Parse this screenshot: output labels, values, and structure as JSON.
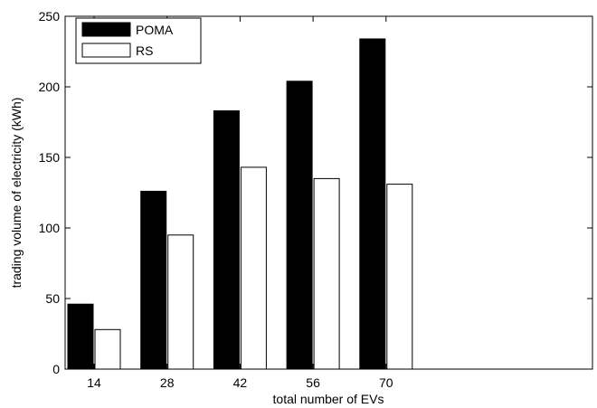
{
  "chart_data": {
    "type": "bar",
    "title": "",
    "xlabel": "total number of EVs",
    "ylabel": "trading volume of electricity (kWh)",
    "categories": [
      "14",
      "28",
      "42",
      "56",
      "70"
    ],
    "series": [
      {
        "name": "POMA",
        "values": [
          46,
          126,
          183,
          204,
          234
        ],
        "color": "#000000"
      },
      {
        "name": "RS",
        "values": [
          28,
          95,
          143,
          135,
          131
        ],
        "color": "#ffffff"
      }
    ],
    "ylim": [
      0,
      250
    ],
    "yticks": [
      0,
      50,
      100,
      150,
      200,
      250
    ],
    "grid": false,
    "legend_position": "top-left"
  }
}
